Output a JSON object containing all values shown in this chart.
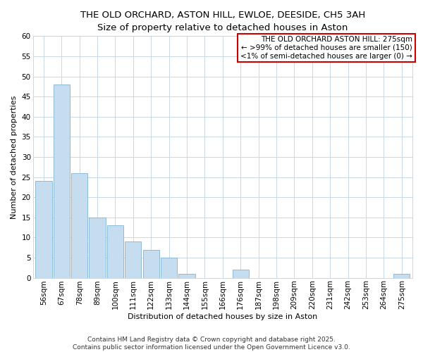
{
  "title_line1": "THE OLD ORCHARD, ASTON HILL, EWLOE, DEESIDE, CH5 3AH",
  "title_line2": "Size of property relative to detached houses in Aston",
  "categories": [
    "56sqm",
    "67sqm",
    "78sqm",
    "89sqm",
    "100sqm",
    "111sqm",
    "122sqm",
    "133sqm",
    "144sqm",
    "155sqm",
    "166sqm",
    "176sqm",
    "187sqm",
    "198sqm",
    "209sqm",
    "220sqm",
    "231sqm",
    "242sqm",
    "253sqm",
    "264sqm",
    "275sqm"
  ],
  "values": [
    24,
    48,
    26,
    15,
    13,
    9,
    7,
    5,
    1,
    0,
    0,
    2,
    0,
    0,
    0,
    0,
    0,
    0,
    0,
    0,
    1
  ],
  "bar_color": "#c5ddef",
  "bar_edge_color": "#7fb4d4",
  "ylabel": "Number of detached properties",
  "xlabel": "Distribution of detached houses by size in Aston",
  "ylim": [
    0,
    60
  ],
  "yticks": [
    0,
    5,
    10,
    15,
    20,
    25,
    30,
    35,
    40,
    45,
    50,
    55,
    60
  ],
  "legend_title": "THE OLD ORCHARD ASTON HILL: 275sqm",
  "legend_line2": "← >99% of detached houses are smaller (150)",
  "legend_line3": "<1% of semi-detached houses are larger (0) →",
  "legend_box_color": "#cc0000",
  "footer_line1": "Contains HM Land Registry data © Crown copyright and database right 2025.",
  "footer_line2": "Contains public sector information licensed under the Open Government Licence v3.0.",
  "bg_color": "#ffffff",
  "grid_color": "#c8d8e8",
  "title_fontsize": 9.5,
  "subtitle_fontsize": 8.5,
  "axis_label_fontsize": 8,
  "tick_fontsize": 7.5,
  "footer_fontsize": 6.5,
  "legend_fontsize": 7.5
}
